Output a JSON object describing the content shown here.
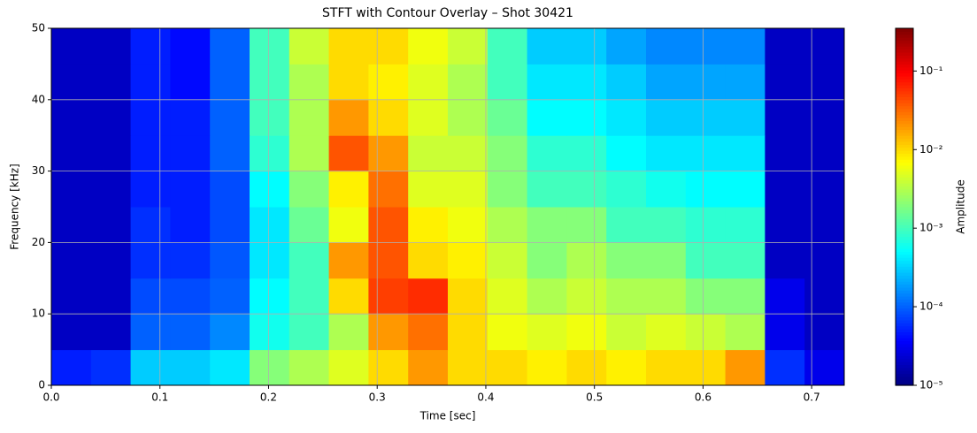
{
  "chart_data": {
    "type": "heatmap",
    "title": "STFT with Contour Overlay – Shot 30421",
    "x_label": "Time [sec]",
    "y_label": "Frequency [kHz]",
    "colorbar_label": "Amplitude",
    "colormap": "jet",
    "color_scale": "log",
    "grid": true,
    "x": [
      0,
      0.0365,
      0.073,
      0.1095,
      0.146,
      0.1825,
      0.219,
      0.2555,
      0.292,
      0.3285,
      0.365,
      0.4015,
      0.438,
      0.4745,
      0.511,
      0.5475,
      0.584,
      0.6205,
      0.657,
      0.6935,
      0.73
    ],
    "y": [
      0,
      5,
      10,
      15,
      20,
      25,
      30,
      35,
      40,
      45,
      50
    ],
    "values": [
      [
        5e-05,
        6e-05,
        0.0003,
        0.0003,
        0.0004,
        0.002,
        0.003,
        0.005,
        0.01,
        0.02,
        0.01,
        0.01,
        0.008,
        0.01,
        0.008,
        0.01,
        0.01,
        0.02,
        6e-05,
        3e-05
      ],
      [
        2e-05,
        2e-05,
        0.0001,
        0.0001,
        0.00015,
        0.0006,
        0.001,
        0.003,
        0.02,
        0.03,
        0.01,
        0.006,
        0.005,
        0.006,
        0.004,
        0.005,
        0.004,
        0.003,
        3e-05,
        2e-05
      ],
      [
        2e-05,
        2e-05,
        8e-05,
        8e-05,
        0.0001,
        0.0005,
        0.001,
        0.01,
        0.05,
        0.06,
        0.01,
        0.005,
        0.003,
        0.004,
        0.003,
        0.003,
        0.002,
        0.002,
        3e-05,
        2e-05
      ],
      [
        2e-05,
        2e-05,
        6e-05,
        6e-05,
        9e-05,
        0.0004,
        0.001,
        0.02,
        0.04,
        0.01,
        0.008,
        0.004,
        0.002,
        0.003,
        0.002,
        0.002,
        0.001,
        0.001,
        2e-05,
        2e-05
      ],
      [
        2e-05,
        2e-05,
        6e-05,
        5e-05,
        8e-05,
        0.0004,
        0.0015,
        0.006,
        0.04,
        0.008,
        0.006,
        0.003,
        0.002,
        0.002,
        0.001,
        0.001,
        0.0008,
        0.0008,
        2e-05,
        2e-05
      ],
      [
        2e-05,
        2e-05,
        5e-05,
        5e-05,
        8e-05,
        0.0005,
        0.002,
        0.008,
        0.03,
        0.005,
        0.005,
        0.002,
        0.001,
        0.001,
        0.0008,
        0.0006,
        0.0005,
        0.0005,
        2e-05,
        2e-05
      ],
      [
        2e-05,
        2e-05,
        5e-05,
        5e-05,
        0.0001,
        0.0008,
        0.003,
        0.04,
        0.02,
        0.004,
        0.004,
        0.002,
        0.0008,
        0.0008,
        0.0005,
        0.0004,
        0.0004,
        0.0004,
        2e-05,
        2e-05
      ],
      [
        2e-05,
        2e-05,
        5e-05,
        5e-05,
        0.0001,
        0.001,
        0.003,
        0.02,
        0.01,
        0.005,
        0.003,
        0.0015,
        0.0005,
        0.0005,
        0.0004,
        0.0003,
        0.0003,
        0.0003,
        2e-05,
        2e-05
      ],
      [
        2e-05,
        2e-05,
        5e-05,
        4e-05,
        0.0001,
        0.001,
        0.003,
        0.01,
        0.008,
        0.005,
        0.003,
        0.001,
        0.0004,
        0.0004,
        0.0003,
        0.0002,
        0.0002,
        0.0002,
        2e-05,
        2e-05
      ],
      [
        2e-05,
        2e-05,
        5e-05,
        4e-05,
        0.0001,
        0.001,
        0.004,
        0.01,
        0.01,
        0.006,
        0.004,
        0.001,
        0.0003,
        0.0003,
        0.0002,
        0.00015,
        0.00015,
        0.00015,
        2e-05,
        2e-05
      ]
    ],
    "xlim": [
      0,
      0.73
    ],
    "ylim": [
      0,
      50
    ],
    "xticks": [
      {
        "value": 0,
        "label": "0.0"
      },
      0.1,
      0.2,
      0.3,
      0.4,
      0.5,
      0.6,
      0.7
    ],
    "yticks": [
      0,
      10,
      20,
      30,
      40,
      50
    ],
    "clim": [
      1e-05,
      0.35
    ],
    "colorbar_ticks": [
      {
        "value": 1e-05,
        "label": "10⁻⁵"
      },
      {
        "value": 0.0001,
        "label": "10⁻⁴"
      },
      {
        "value": 0.001,
        "label": "10⁻³"
      },
      {
        "value": 0.01,
        "label": "10⁻²"
      },
      {
        "value": 0.1,
        "label": "10⁻¹"
      }
    ]
  }
}
